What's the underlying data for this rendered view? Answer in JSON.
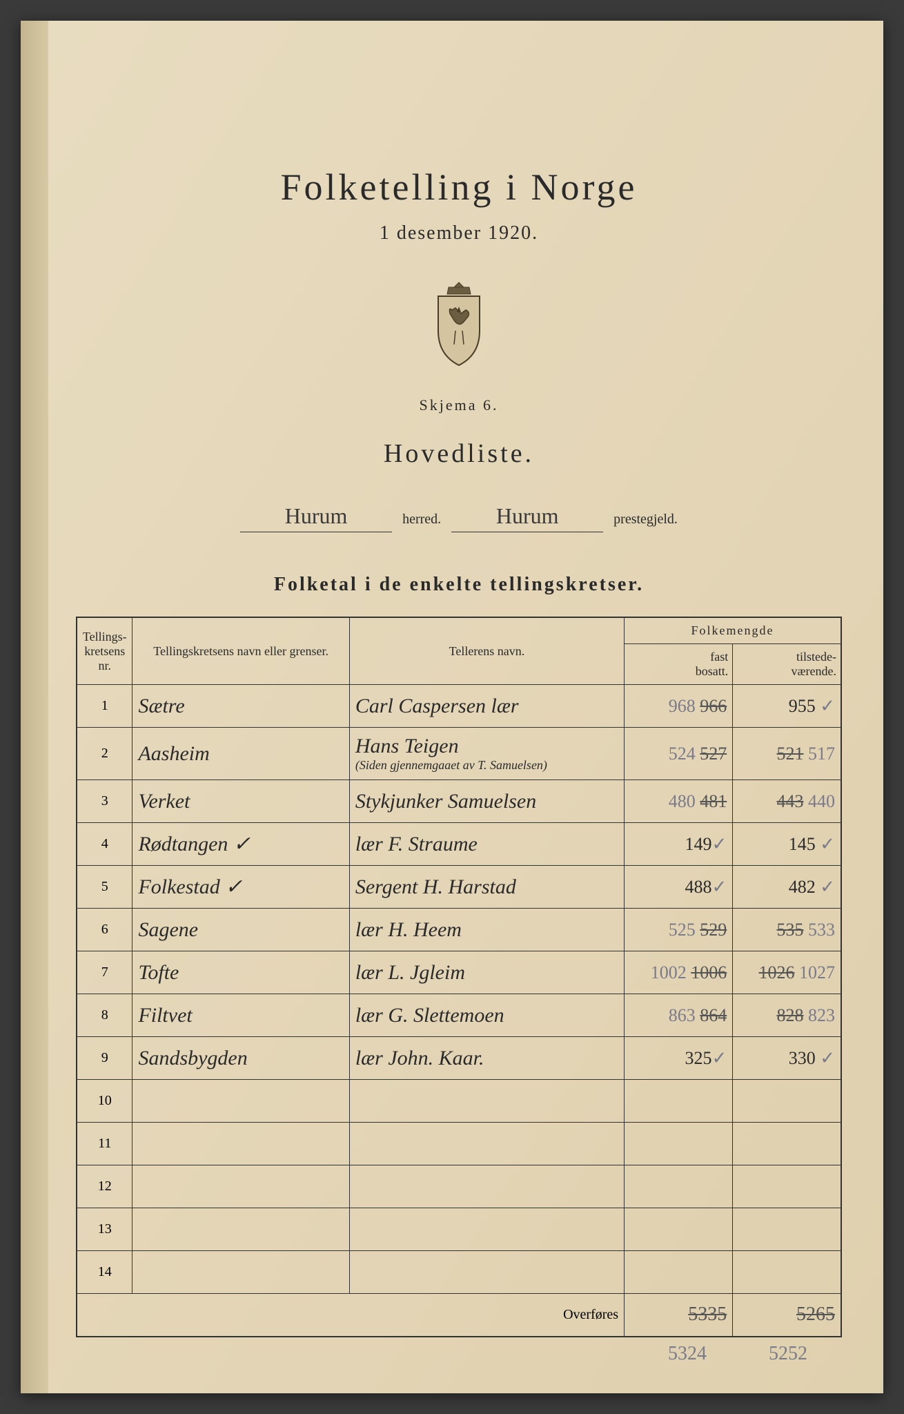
{
  "document": {
    "title": "Folketelling i Norge",
    "date": "1 desember 1920.",
    "skjema": "Skjema 6.",
    "listType": "Hovedliste.",
    "herred_label": "herred.",
    "prestegjeld_label": "prestegjeld.",
    "herred_value": "Hurum",
    "prestegjeld_value": "Hurum",
    "sectionTitle": "Folketal i de enkelte tellingskretser.",
    "overfores": "Overføres"
  },
  "table": {
    "headers": {
      "nr": "Tellings-\nkretsens\nnr.",
      "navn": "Tellingskretsens navn eller grenser.",
      "teller": "Tellerens navn.",
      "folkemengde": "Folkemengde",
      "fast": "fast\nbosatt.",
      "tilstede": "tilstede-\nværende."
    },
    "rows": [
      {
        "nr": "1",
        "navn": "Sætre",
        "teller": "Carl Caspersen lær",
        "fast_pencil": "968",
        "fast_struck": "966",
        "tilstede": "955",
        "tilstede_mark": "✓"
      },
      {
        "nr": "2",
        "navn": "Aasheim",
        "teller": "Hans Teigen",
        "teller_note": "(Siden gjennemgaaet av T. Samuelsen)",
        "fast_pencil": "524",
        "fast_struck": "527",
        "tilstede_struck": "521",
        "tilstede_pencil": "517"
      },
      {
        "nr": "3",
        "navn": "Verket",
        "teller": "Stykjunker Samuelsen",
        "fast_pencil": "480",
        "fast_struck": "481",
        "tilstede_struck": "443",
        "tilstede_pencil": "440"
      },
      {
        "nr": "4",
        "navn": "Rødtangen",
        "navn_mark": "✓",
        "teller": "lær F. Straume",
        "fast": "149",
        "fast_mark": "✓",
        "tilstede": "145",
        "tilstede_mark": "✓"
      },
      {
        "nr": "5",
        "navn": "Folkestad",
        "navn_mark": "✓",
        "teller": "Sergent H. Harstad",
        "fast": "488",
        "fast_mark": "✓",
        "tilstede": "482",
        "tilstede_mark": "✓"
      },
      {
        "nr": "6",
        "navn": "Sagene",
        "teller": "lær H. Heem",
        "fast_pencil": "525",
        "fast_struck": "529",
        "tilstede_struck": "535",
        "tilstede_pencil": "533"
      },
      {
        "nr": "7",
        "navn": "Tofte",
        "teller": "lær L. Jgleim",
        "fast_pencil": "1002",
        "fast_struck": "1006",
        "tilstede_struck": "1026",
        "tilstede_pencil": "1027"
      },
      {
        "nr": "8",
        "navn": "Filtvet",
        "teller": "lær G. Slettemoen",
        "fast_pencil": "863",
        "fast_struck": "864",
        "tilstede_struck": "828",
        "tilstede_pencil": "823"
      },
      {
        "nr": "9",
        "navn": "Sandsbygden",
        "teller": "lær John. Kaar.",
        "fast": "325",
        "fast_mark": "✓",
        "tilstede": "330",
        "tilstede_mark": "✓"
      },
      {
        "nr": "10"
      },
      {
        "nr": "11"
      },
      {
        "nr": "12"
      },
      {
        "nr": "13"
      },
      {
        "nr": "14"
      }
    ],
    "totals": {
      "fast_struck": "5335",
      "tilstede_struck": "5265",
      "fast_below": "5324",
      "tilstede_below": "5252"
    }
  },
  "colors": {
    "paper": "#e8dcc0",
    "ink": "#2a2a2a",
    "pencil": "#7a7a8a",
    "border": "#333333"
  }
}
